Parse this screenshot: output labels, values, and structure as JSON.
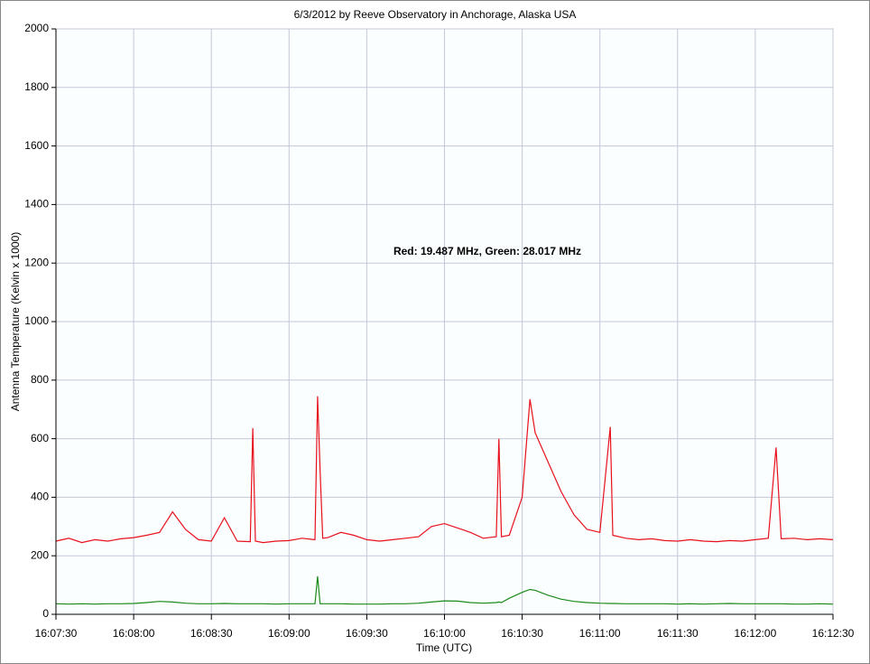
{
  "chart_data": {
    "type": "line",
    "title": "6/3/2012  by  Reeve Observatory  in  Anchorage, Alaska  USA",
    "annotation": "Red: 19.487 MHz, Green: 28.017 MHz",
    "x_label": "Time (UTC)",
    "y_label": "Antenna Temperature (Kelvin x 1000)",
    "x": [
      "16:07:30",
      "16:07:35",
      "16:07:40",
      "16:07:45",
      "16:07:50",
      "16:07:55",
      "16:08:00",
      "16:08:05",
      "16:08:10",
      "16:08:15",
      "16:08:20",
      "16:08:25",
      "16:08:30",
      "16:08:35",
      "16:08:40",
      "16:08:45",
      "16:08:46",
      "16:08:47",
      "16:08:50",
      "16:08:55",
      "16:09:00",
      "16:09:05",
      "16:09:10",
      "16:09:11",
      "16:09:12",
      "16:09:13",
      "16:09:15",
      "16:09:20",
      "16:09:25",
      "16:09:30",
      "16:09:35",
      "16:09:40",
      "16:09:45",
      "16:09:50",
      "16:09:55",
      "16:10:00",
      "16:10:05",
      "16:10:10",
      "16:10:15",
      "16:10:20",
      "16:10:21",
      "16:10:22",
      "16:10:25",
      "16:10:30",
      "16:10:33",
      "16:10:35",
      "16:10:40",
      "16:10:45",
      "16:10:50",
      "16:10:55",
      "16:11:00",
      "16:11:04",
      "16:11:05",
      "16:11:10",
      "16:11:15",
      "16:11:20",
      "16:11:25",
      "16:11:30",
      "16:11:35",
      "16:11:40",
      "16:11:45",
      "16:11:50",
      "16:11:55",
      "16:12:00",
      "16:12:05",
      "16:12:08",
      "16:12:10",
      "16:12:15",
      "16:12:20",
      "16:12:25",
      "16:12:30"
    ],
    "series": [
      {
        "color": "#e8101c",
        "values": [
          250,
          260,
          245,
          255,
          250,
          258,
          262,
          270,
          280,
          350,
          290,
          255,
          250,
          330,
          250,
          248,
          636,
          250,
          245,
          250,
          252,
          260,
          255,
          745,
          490,
          260,
          262,
          280,
          270,
          255,
          250,
          255,
          260,
          265,
          300,
          310,
          295,
          280,
          260,
          265,
          600,
          265,
          270,
          400,
          735,
          620,
          520,
          420,
          340,
          290,
          280,
          640,
          270,
          260,
          255,
          258,
          252,
          250,
          255,
          250,
          248,
          252,
          250,
          255,
          260,
          570,
          258,
          260,
          255,
          258,
          255
        ]
      },
      {
        "color": "#1a8a1a",
        "values": [
          36,
          35,
          36,
          35,
          36,
          36,
          37,
          40,
          44,
          42,
          38,
          36,
          36,
          37,
          36,
          36,
          36,
          36,
          36,
          35,
          36,
          36,
          36,
          130,
          36,
          36,
          36,
          36,
          35,
          35,
          35,
          36,
          36,
          38,
          42,
          46,
          45,
          40,
          38,
          40,
          42,
          40,
          55,
          75,
          85,
          82,
          65,
          52,
          44,
          40,
          38,
          37,
          37,
          36,
          36,
          36,
          36,
          35,
          36,
          35,
          36,
          37,
          36,
          36,
          36,
          36,
          36,
          35,
          35,
          36,
          35
        ]
      }
    ],
    "xlim": [
      "16:07:30",
      "16:12:30"
    ],
    "xticks": [
      "16:07:30",
      "16:08:00",
      "16:08:30",
      "16:09:00",
      "16:09:30",
      "16:10:00",
      "16:10:30",
      "16:11:00",
      "16:11:30",
      "16:12:00",
      "16:12:30"
    ],
    "ylim": [
      0,
      2000
    ],
    "yticks": [
      0,
      200,
      400,
      600,
      800,
      1000,
      1200,
      1400,
      1600,
      1800,
      2000
    ],
    "grid": true
  }
}
